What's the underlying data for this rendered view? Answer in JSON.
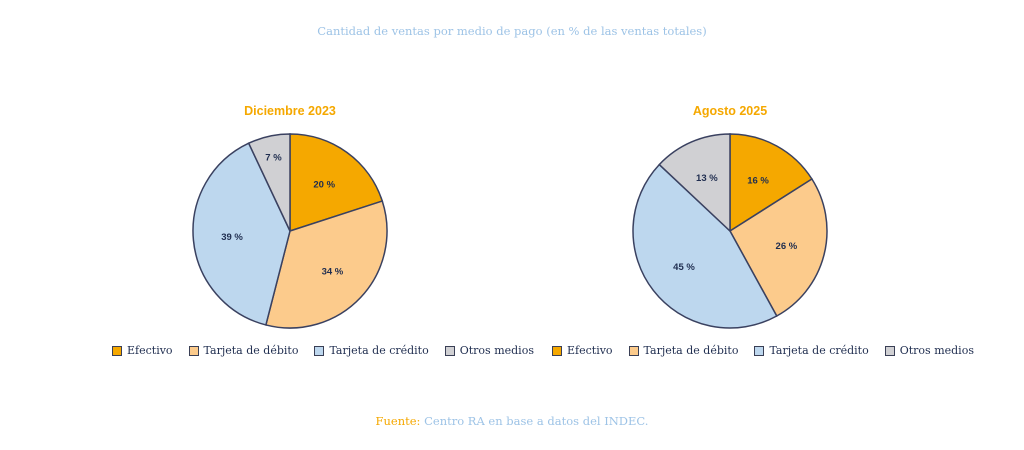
{
  "title": "Cantidad de ventas por medio de pago (en % de las ventas totales)",
  "source": {
    "label": "Fuente:",
    "text": " Centro RA en base a datos del INDEC."
  },
  "chart_data": [
    {
      "type": "pie",
      "title": "Diciembre 2023",
      "categories": [
        "Efectivo",
        "Tarjeta de débito",
        "Tarjeta de crédito",
        "Otros medios"
      ],
      "values": [
        20,
        34,
        39,
        7
      ],
      "labels": [
        "20 %",
        "34 %",
        "39 %",
        "7 %"
      ],
      "colors": [
        "#f5a800",
        "#fccb8c",
        "#bdd7ee",
        "#d0d0d3"
      ],
      "start": "top",
      "direction": "clockwise",
      "legend": "bottom"
    },
    {
      "type": "pie",
      "title": "Agosto 2025",
      "categories": [
        "Efectivo",
        "Tarjeta de débito",
        "Tarjeta de crédito",
        "Otros medios"
      ],
      "values": [
        16,
        26,
        45,
        13
      ],
      "labels": [
        "16 %",
        "26 %",
        "45 %",
        "13 %"
      ],
      "colors": [
        "#f5a800",
        "#fccb8c",
        "#bdd7ee",
        "#d0d0d3"
      ],
      "start": "top",
      "direction": "clockwise",
      "legend": "bottom"
    }
  ],
  "legend_items": [
    {
      "label": "Efectivo",
      "color": "#f5a800"
    },
    {
      "label": "Tarjeta de débito",
      "color": "#fccb8c"
    },
    {
      "label": "Tarjeta de crédito",
      "color": "#bdd7ee"
    },
    {
      "label": "Otros medios",
      "color": "#d0d0d3"
    }
  ]
}
